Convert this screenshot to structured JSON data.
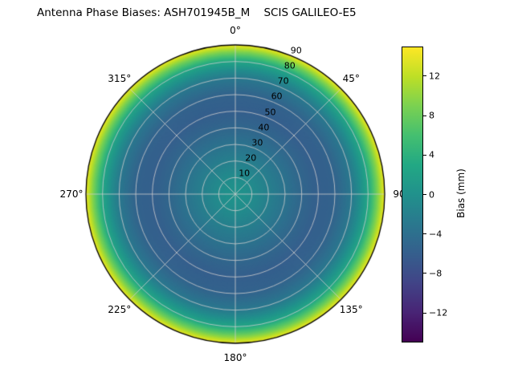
{
  "title": "Antenna Phase Biases: ASH701945B_M    SCIS GALILEO-E5",
  "chart_data": {
    "type": "heatmap",
    "projection": "polar",
    "title": "Antenna Phase Biases: ASH701945B_M    SCIS GALILEO-E5",
    "antenna": "ASH701945B_M",
    "model": "SCIS",
    "signal": "GALILEO-E5",
    "colormap": "viridis",
    "colorbar_label": "Bias (mm)",
    "clim": [
      -15,
      15
    ],
    "colorbar_ticks": [
      {
        "value": 12,
        "label": "12"
      },
      {
        "value": 8,
        "label": "8"
      },
      {
        "value": 4,
        "label": "4"
      },
      {
        "value": 0,
        "label": "0"
      },
      {
        "value": -4,
        "label": "−4"
      },
      {
        "value": -8,
        "label": "−8"
      },
      {
        "value": -12,
        "label": "−12"
      }
    ],
    "angular_ticks": [
      {
        "angle_deg": 0,
        "label": "0°"
      },
      {
        "angle_deg": 45,
        "label": "45°"
      },
      {
        "angle_deg": 90,
        "label": "90"
      },
      {
        "angle_deg": 135,
        "label": "135°"
      },
      {
        "angle_deg": 180,
        "label": "180°"
      },
      {
        "angle_deg": 225,
        "label": "225°"
      },
      {
        "angle_deg": 270,
        "label": "270°"
      },
      {
        "angle_deg": 315,
        "label": "315°"
      }
    ],
    "radial_ticks": [
      {
        "zenith_deg": 10,
        "label": "10"
      },
      {
        "zenith_deg": 20,
        "label": "20"
      },
      {
        "zenith_deg": 30,
        "label": "30"
      },
      {
        "zenith_deg": 40,
        "label": "40"
      },
      {
        "zenith_deg": 50,
        "label": "50"
      },
      {
        "zenith_deg": 60,
        "label": "60"
      },
      {
        "zenith_deg": 70,
        "label": "70"
      },
      {
        "zenith_deg": 80,
        "label": "80"
      },
      {
        "zenith_deg": 90,
        "label": "90"
      }
    ],
    "radial_axis_max": 90,
    "azimuthal_symmetry": true,
    "radial_profile": {
      "zenith_deg": [
        0,
        10,
        20,
        30,
        40,
        50,
        60,
        70,
        75,
        80,
        85,
        90
      ],
      "bias_mm": [
        0.5,
        -0.5,
        -2.0,
        -3.5,
        -5.0,
        -6.0,
        -5.5,
        -3.0,
        -0.5,
        2.5,
        8.0,
        14.0
      ]
    }
  },
  "colors": {
    "background": "#ffffff",
    "grid": "#cccccc",
    "spine": "#000000",
    "text": "#000000"
  }
}
